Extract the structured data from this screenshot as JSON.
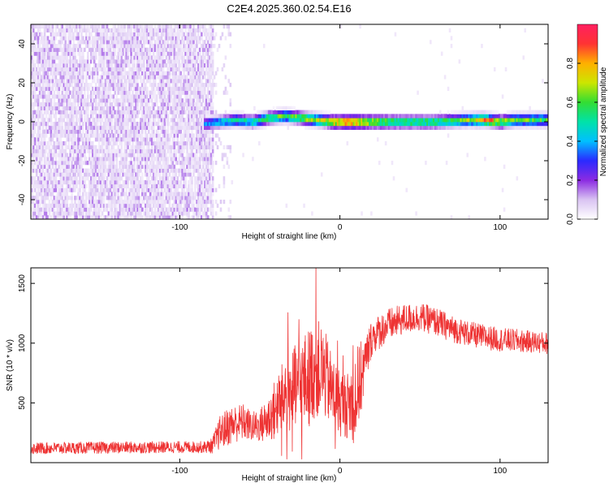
{
  "chart_data": [
    {
      "type": "heatmap",
      "title": "C2E4.2025.360.02.54.E16",
      "xlabel": "Height of straight line (km)",
      "ylabel": "Frequency (Hz)",
      "xlim": [
        -193,
        130
      ],
      "ylim": [
        -50,
        50
      ],
      "xticks": [
        -100,
        0,
        100
      ],
      "xtick_labels": [
        "-100",
        "0",
        "100"
      ],
      "yticks": [
        -40,
        -20,
        0,
        20,
        40
      ],
      "ytick_labels": [
        "-40",
        "-20",
        "0",
        "20",
        "40"
      ],
      "colorbar": {
        "label": "Normalized spectral amplitude",
        "range": [
          0,
          1
        ],
        "ticks": [
          0.0,
          0.2,
          0.4,
          0.6,
          0.8
        ],
        "tick_labels": [
          "0.0",
          "0.2",
          "0.4",
          "0.6",
          "0.8"
        ],
        "stops": [
          "#ffffff",
          "#d9c3f2",
          "#8b2be2",
          "#2a2aff",
          "#00c0ff",
          "#00e2a8",
          "#33dd33",
          "#cce600",
          "#ffb000",
          "#ff3333",
          "#ff2060"
        ]
      },
      "regions": [
        {
          "name": "noise",
          "x": [
            -193,
            -80
          ],
          "freq_range": [
            -50,
            50
          ],
          "amplitude_range": [
            0.0,
            0.15
          ]
        },
        {
          "name": "signal",
          "x": [
            -85,
            130
          ],
          "center_freq": 0,
          "bandwidth_hz": 6,
          "peak_amplitude": 0.95
        }
      ],
      "ridge": {
        "x": [
          -85,
          -75,
          -65,
          -55,
          -45,
          -35,
          -25,
          -15,
          -5,
          5,
          20,
          40,
          60,
          80,
          90,
          100,
          110,
          130
        ],
        "freq": [
          -1,
          0,
          1,
          0,
          2,
          3,
          2,
          1,
          0,
          0,
          0,
          0,
          0,
          1,
          1,
          0,
          1,
          1
        ],
        "amplitude": [
          0.35,
          0.45,
          0.5,
          0.5,
          0.6,
          0.6,
          0.65,
          0.7,
          0.8,
          0.9,
          0.7,
          0.6,
          0.6,
          0.65,
          0.9,
          0.7,
          0.6,
          0.6
        ]
      }
    },
    {
      "type": "line",
      "xlabel": "Height of straight line (km)",
      "ylabel": "SNR (10 * v/v)",
      "xlim": [
        -193,
        130
      ],
      "ylim": [
        0,
        1630
      ],
      "xticks": [
        -100,
        0,
        100
      ],
      "xtick_labels": [
        "-100",
        "0",
        "100"
      ],
      "yticks": [
        500,
        1000,
        1500
      ],
      "ytick_labels": [
        "500",
        "1000",
        "1500"
      ],
      "series": [
        {
          "name": "SNR",
          "color": "#ee3333",
          "x": [
            -193,
            -150,
            -100,
            -85,
            -80,
            -75,
            -70,
            -65,
            -60,
            -55,
            -50,
            -45,
            -40,
            -35,
            -30,
            -25,
            -20,
            -15,
            -10,
            -5,
            0,
            5,
            10,
            15,
            20,
            30,
            40,
            50,
            60,
            70,
            80,
            90,
            100,
            110,
            120,
            130
          ],
          "values": [
            120,
            125,
            130,
            130,
            140,
            250,
            300,
            330,
            340,
            300,
            310,
            360,
            450,
            550,
            600,
            650,
            700,
            800,
            750,
            600,
            500,
            480,
            550,
            800,
            1050,
            1150,
            1200,
            1220,
            1180,
            1120,
            1080,
            1050,
            1030,
            1020,
            1010,
            1000
          ],
          "noise_amplitude": [
            70,
            70,
            70,
            70,
            90,
            200,
            230,
            230,
            220,
            180,
            200,
            280,
            380,
            450,
            500,
            550,
            600,
            600,
            550,
            450,
            400,
            400,
            600,
            350,
            220,
            200,
            180,
            170,
            170,
            160,
            150,
            150,
            140,
            140,
            130,
            130
          ]
        }
      ]
    }
  ]
}
